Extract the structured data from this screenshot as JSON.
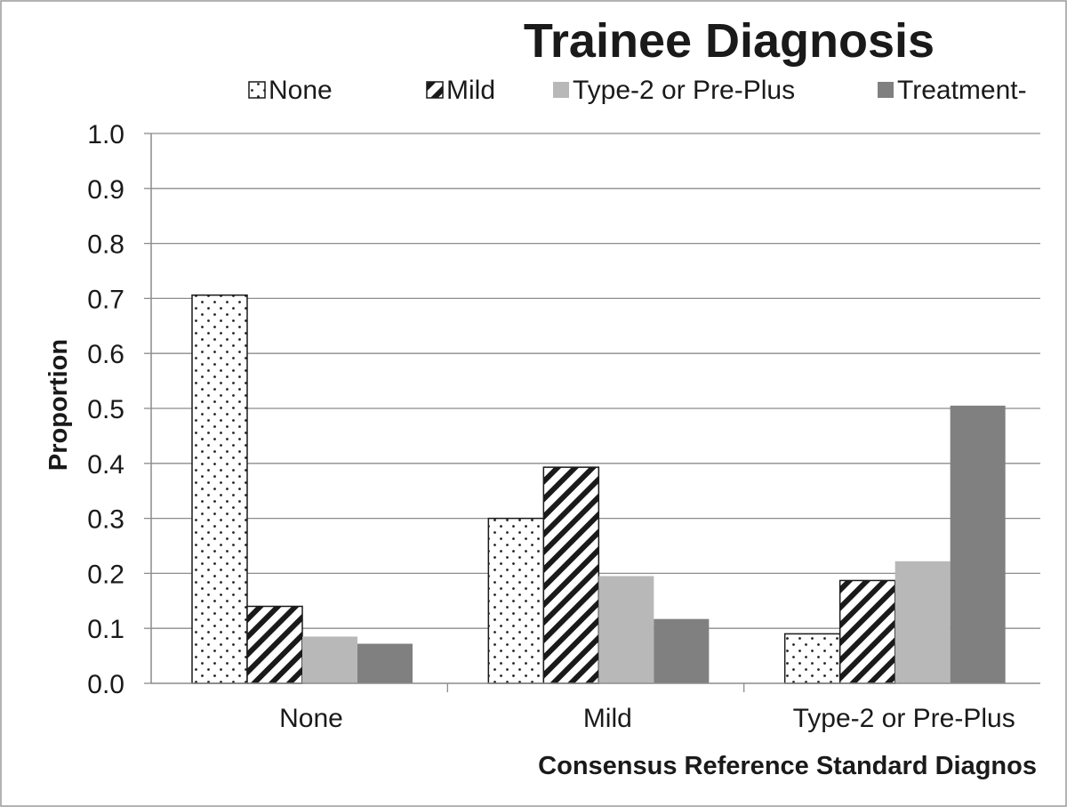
{
  "chart_data": {
    "type": "bar",
    "title": "Trainee Diagnosis",
    "xlabel": "Consensus Reference Standard Diagnos",
    "ylabel": "Proportion",
    "ylim": [
      0,
      1.0
    ],
    "yticks": [
      "0.0",
      "0.1",
      "0.2",
      "0.3",
      "0.4",
      "0.5",
      "0.6",
      "0.7",
      "0.8",
      "0.9",
      "1.0"
    ],
    "categories": [
      "None",
      "Mild",
      "Type-2 or Pre-Plus"
    ],
    "grid": true,
    "legend_position": "top",
    "series": [
      {
        "name": "None",
        "pattern": "dots",
        "values": [
          0.706,
          0.3,
          0.09
        ]
      },
      {
        "name": "Mild",
        "pattern": "diagonal-stripes",
        "values": [
          0.14,
          0.393,
          0.187
        ]
      },
      {
        "name": "Type-2 or Pre-Plus",
        "pattern": "solid-light-gray",
        "color": "#b8b8b8",
        "values": [
          0.085,
          0.195,
          0.222
        ]
      },
      {
        "name": "Treatment-",
        "pattern": "solid-dark-gray",
        "color": "#808080",
        "values": [
          0.072,
          0.117,
          0.505
        ]
      }
    ]
  }
}
